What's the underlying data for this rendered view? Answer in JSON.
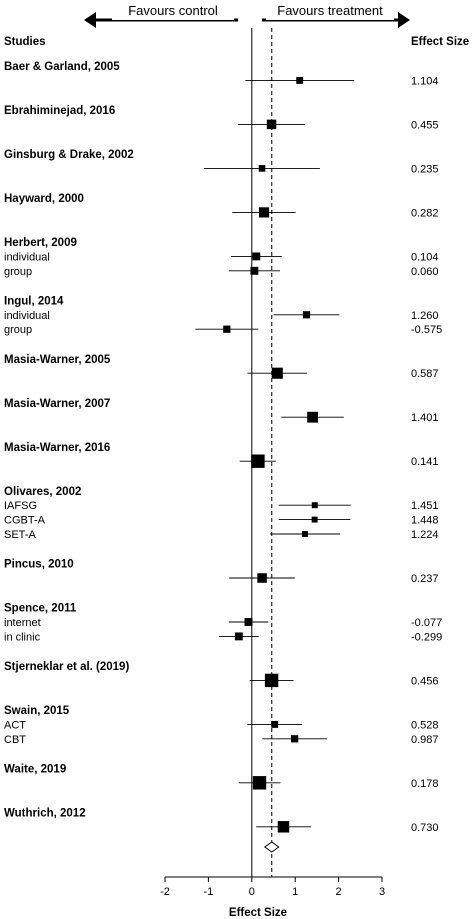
{
  "chart_data": {
    "type": "forest",
    "header": {
      "studies": "Studies",
      "effect_size": "Effect Size",
      "favours_left": "Favours control",
      "favours_right": "Favours treatment"
    },
    "xlabel": "Effect Size",
    "xlim": [
      -2,
      3
    ],
    "xticks": [
      -2,
      -1,
      0,
      1,
      2,
      3
    ],
    "reference_line": 0,
    "pooled_effect": 0.46,
    "pooled_ci": [
      0.3,
      0.62
    ],
    "studies": [
      {
        "title": "Baer & Garland, 2005",
        "rows": [
          {
            "label": "",
            "effect": 1.104,
            "effect_label": "1.104",
            "ci": [
              -0.15,
              2.36
            ],
            "weight": 0.6
          }
        ]
      },
      {
        "title": "Ebrahiminejad, 2016",
        "rows": [
          {
            "label": "",
            "effect": 0.455,
            "effect_label": "0.455",
            "ci": [
              -0.32,
              1.23
            ],
            "weight": 1.0
          }
        ]
      },
      {
        "title": "Ginsburg & Drake, 2002",
        "rows": [
          {
            "label": "",
            "effect": 0.235,
            "effect_label": "0.235",
            "ci": [
              -1.1,
              1.57
            ],
            "weight": 0.55
          }
        ]
      },
      {
        "title": "Hayward, 2000",
        "rows": [
          {
            "label": "",
            "effect": 0.282,
            "effect_label": "0.282",
            "ci": [
              -0.45,
              1.01
            ],
            "weight": 1.1
          }
        ]
      },
      {
        "title": "Herbert, 2009",
        "rows": [
          {
            "label": "individual",
            "effect": 0.104,
            "effect_label": "0.104",
            "ci": [
              -0.48,
              0.69
            ],
            "weight": 0.75
          },
          {
            "label": "group",
            "effect": 0.06,
            "effect_label": "0.060",
            "ci": [
              -0.53,
              0.65
            ],
            "weight": 0.75
          }
        ]
      },
      {
        "title": "Ingul, 2014",
        "rows": [
          {
            "label": "individual",
            "effect": 1.26,
            "effect_label": "1.260",
            "ci": [
              0.5,
              2.02
            ],
            "weight": 0.65
          },
          {
            "label": "group",
            "effect": -0.575,
            "effect_label": "-0.575",
            "ci": [
              -1.3,
              0.15
            ],
            "weight": 0.65
          }
        ]
      },
      {
        "title": "Masia-Warner, 2005",
        "rows": [
          {
            "label": "",
            "effect": 0.587,
            "effect_label": "0.587",
            "ci": [
              -0.1,
              1.27
            ],
            "weight": 1.25
          }
        ]
      },
      {
        "title": "Masia-Warner, 2007",
        "rows": [
          {
            "label": "",
            "effect": 1.401,
            "effect_label": "1.401",
            "ci": [
              0.68,
              2.12
            ],
            "weight": 1.2
          }
        ]
      },
      {
        "title": "Masia-Warner, 2016",
        "rows": [
          {
            "label": "",
            "effect": 0.141,
            "effect_label": "0.141",
            "ci": [
              -0.28,
              0.56
            ],
            "weight": 1.6
          }
        ]
      },
      {
        "title": "Olivares, 2002",
        "rows": [
          {
            "label": "IAFSG",
            "effect": 1.451,
            "effect_label": "1.451",
            "ci": [
              0.62,
              2.28
            ],
            "weight": 0.45
          },
          {
            "label": "CGBT-A",
            "effect": 1.448,
            "effect_label": "1.448",
            "ci": [
              0.62,
              2.27
            ],
            "weight": 0.45
          },
          {
            "label": "SET-A",
            "effect": 1.224,
            "effect_label": "1.224",
            "ci": [
              0.42,
              2.03
            ],
            "weight": 0.45
          }
        ]
      },
      {
        "title": "Pincus, 2010",
        "rows": [
          {
            "label": "",
            "effect": 0.237,
            "effect_label": "0.237",
            "ci": [
              -0.52,
              0.99
            ],
            "weight": 1.0
          }
        ]
      },
      {
        "title": "Spence, 2011",
        "rows": [
          {
            "label": "internet",
            "effect": -0.077,
            "effect_label": "-0.077",
            "ci": [
              -0.53,
              0.38
            ],
            "weight": 0.75
          },
          {
            "label": "in clinic",
            "effect": -0.299,
            "effect_label": "-0.299",
            "ci": [
              -0.76,
              0.16
            ],
            "weight": 0.75
          }
        ]
      },
      {
        "title": "Stjerneklar et al. (2019)",
        "rows": [
          {
            "label": "",
            "effect": 0.456,
            "effect_label": "0.456",
            "ci": [
              -0.05,
              0.96
            ],
            "weight": 1.6
          }
        ]
      },
      {
        "title": "Swain, 2015",
        "rows": [
          {
            "label": "ACT",
            "effect": 0.528,
            "effect_label": "0.528",
            "ci": [
              -0.1,
              1.16
            ],
            "weight": 0.6
          },
          {
            "label": "CBT",
            "effect": 0.987,
            "effect_label": "0.987",
            "ci": [
              0.24,
              1.73
            ],
            "weight": 0.65
          }
        ]
      },
      {
        "title": "Waite, 2019",
        "rows": [
          {
            "label": "",
            "effect": 0.178,
            "effect_label": "0.178",
            "ci": [
              -0.3,
              0.66
            ],
            "weight": 1.6
          }
        ]
      },
      {
        "title": "Wuthrich, 2012",
        "rows": [
          {
            "label": "",
            "effect": 0.73,
            "effect_label": "0.730",
            "ci": [
              0.1,
              1.36
            ],
            "weight": 1.3
          }
        ]
      }
    ]
  }
}
